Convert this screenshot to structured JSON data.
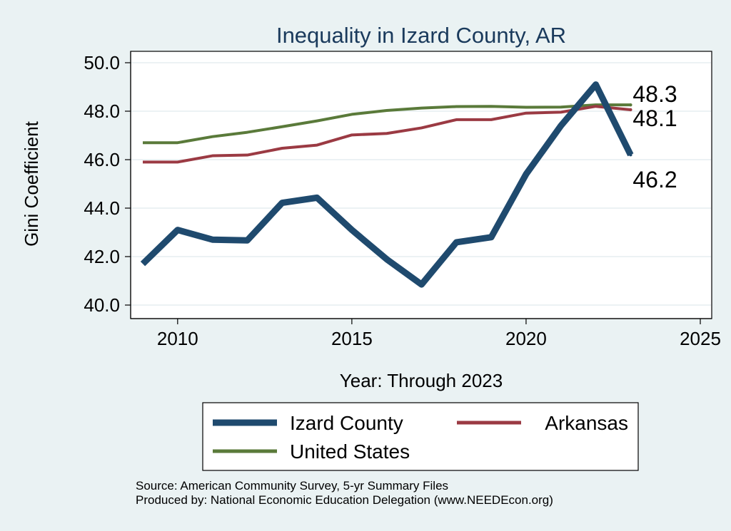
{
  "chart_data": {
    "type": "line",
    "title": "Inequality in Izard County, AR",
    "xlabel": "Year: Through 2023",
    "ylabel": "Gini Coefficient",
    "xlim": [
      2009,
      2025
    ],
    "ylim": [
      40,
      50
    ],
    "x_ticks": [
      2010,
      2015,
      2020,
      2025
    ],
    "y_ticks": [
      "40.0",
      "42.0",
      "44.0",
      "46.0",
      "48.0",
      "50.0"
    ],
    "x": [
      2009,
      2010,
      2011,
      2012,
      2013,
      2014,
      2015,
      2016,
      2017,
      2018,
      2019,
      2020,
      2021,
      2022,
      2023
    ],
    "series": [
      {
        "name": "United States",
        "color": "#5a7a3a",
        "values": [
          46.7,
          46.7,
          46.95,
          47.13,
          47.36,
          47.6,
          47.87,
          48.03,
          48.13,
          48.19,
          48.2,
          48.16,
          48.17,
          48.26,
          48.26
        ],
        "end_label": "48.3"
      },
      {
        "name": "Arkansas",
        "color": "#9b3a43",
        "values": [
          45.9,
          45.9,
          46.16,
          46.19,
          46.47,
          46.6,
          47.02,
          47.08,
          47.31,
          47.65,
          47.65,
          47.92,
          47.96,
          48.2,
          48.06
        ],
        "end_label": "48.1"
      },
      {
        "name": "Izard County",
        "color": "#1f4a6e",
        "values": [
          41.7,
          43.1,
          42.7,
          42.67,
          44.22,
          44.43,
          43.1,
          41.89,
          40.85,
          42.59,
          42.8,
          45.4,
          47.4,
          49.1,
          46.2
        ],
        "end_label": "46.2"
      }
    ],
    "legend_position": "bottom",
    "legend_order": [
      "Izard County",
      "Arkansas",
      "United States"
    ]
  },
  "footnotes": {
    "source": "Source: American Community Survey, 5-yr Summary Files",
    "producer": "Produced by: National Economic Education Delegation (www.NEEDEcon.org)"
  }
}
